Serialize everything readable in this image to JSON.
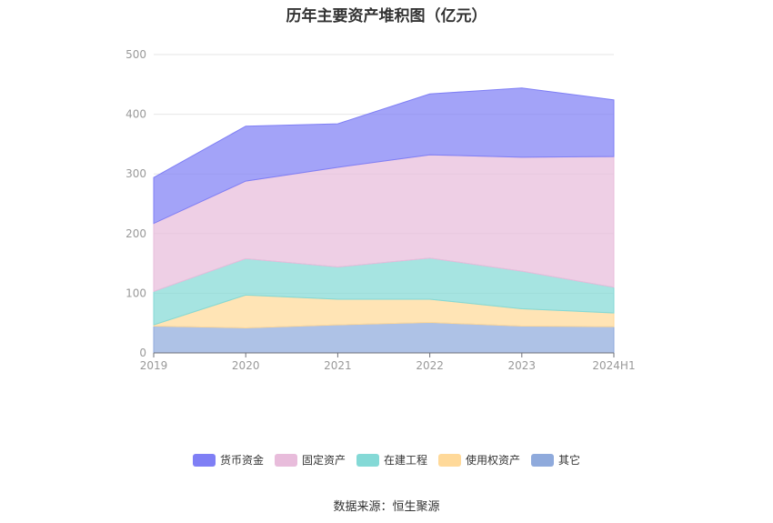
{
  "title": "历年主要资产堆积图（亿元）",
  "source": "数据来源：恒生聚源",
  "chart_data": {
    "type": "area",
    "stacked": true,
    "categories": [
      "2019",
      "2020",
      "2021",
      "2022",
      "2023",
      "2024H1"
    ],
    "ylim": [
      0,
      500
    ],
    "yticks": [
      0,
      100,
      200,
      300,
      400,
      500
    ],
    "grid": true,
    "legend_position": "bottom",
    "series": [
      {
        "name": "其它",
        "color": "#8faadc",
        "values": [
          45,
          42,
          47,
          51,
          45,
          44
        ]
      },
      {
        "name": "使用权资产",
        "color": "#ffd999",
        "values": [
          2,
          55,
          43,
          39,
          29,
          23
        ]
      },
      {
        "name": "在建工程",
        "color": "#84d9d6",
        "values": [
          56,
          61,
          54,
          69,
          63,
          43
        ]
      },
      {
        "name": "固定资产",
        "color": "#e8bcdb",
        "values": [
          114,
          130,
          167,
          173,
          191,
          219
        ]
      },
      {
        "name": "货币资金",
        "color": "#7f7ff5",
        "values": [
          77,
          92,
          73,
          102,
          116,
          95
        ]
      }
    ]
  }
}
